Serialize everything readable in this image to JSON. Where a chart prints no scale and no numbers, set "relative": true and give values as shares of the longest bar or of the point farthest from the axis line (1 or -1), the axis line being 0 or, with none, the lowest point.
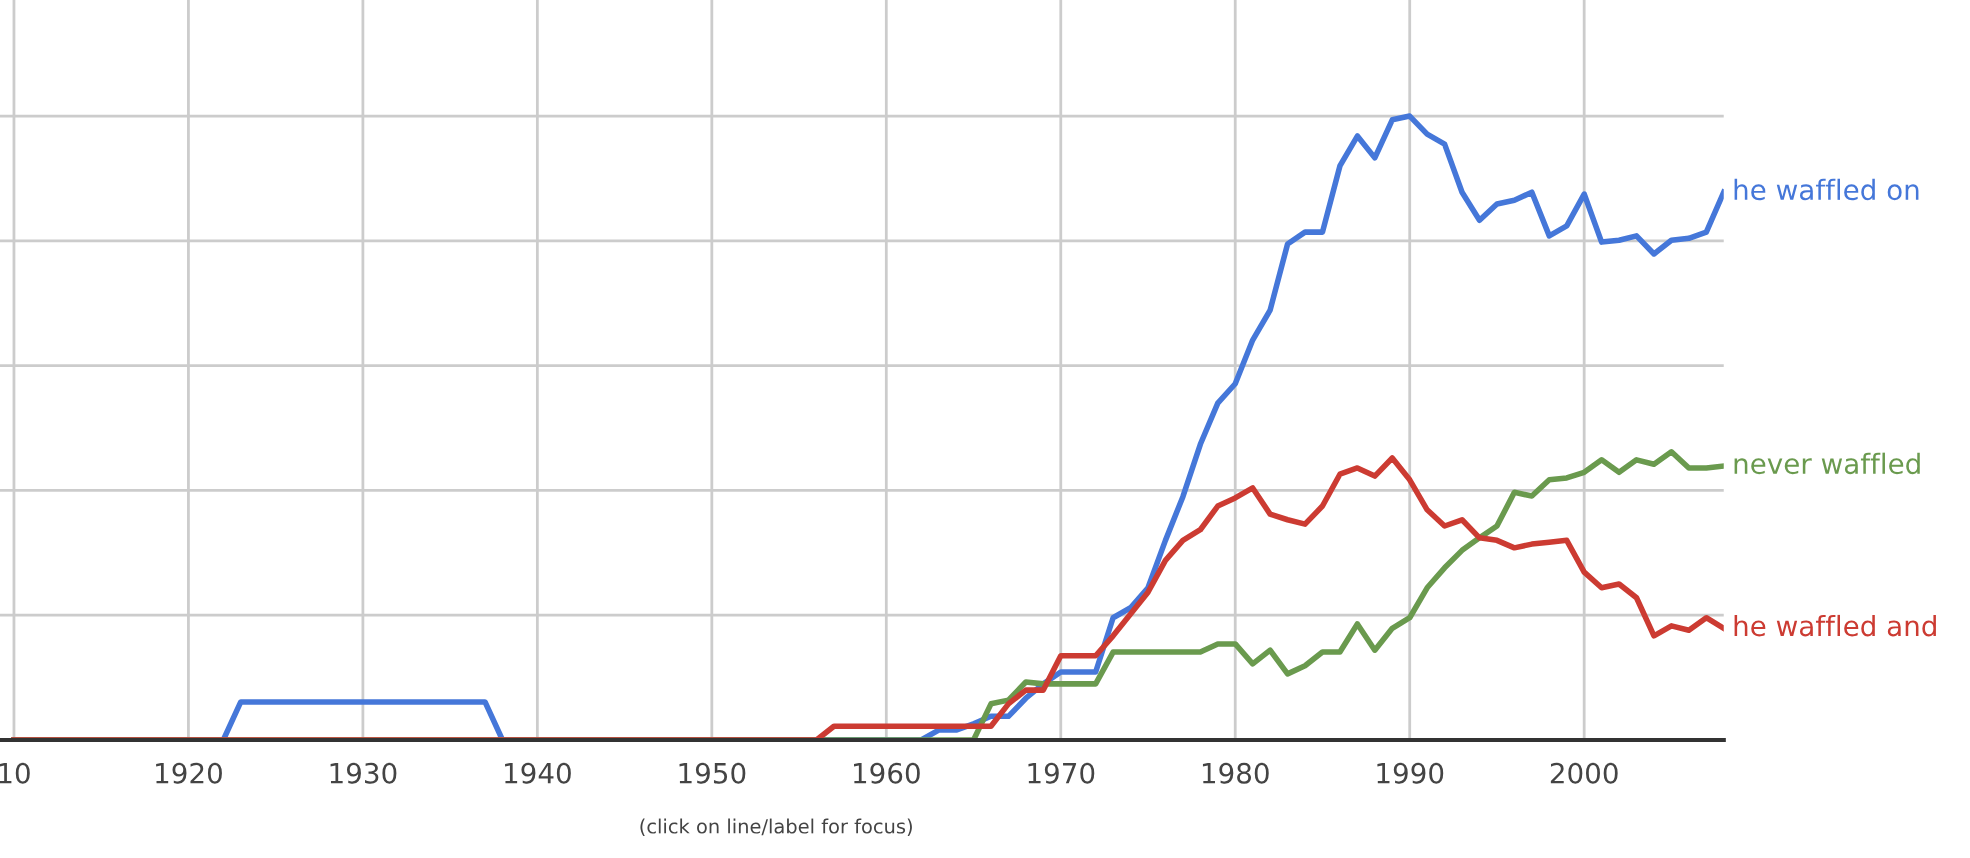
{
  "chart_data": {
    "type": "line",
    "relative": true,
    "xlim": [
      1909.2,
      2008
    ],
    "xticks": [
      {
        "value": 1910,
        "label": "10"
      },
      1920,
      1930,
      1940,
      1950,
      1960,
      1970,
      1980,
      1990,
      2000
    ],
    "grid": true,
    "legend": false,
    "marker": "none",
    "line_style": "solid",
    "annotations": [
      "(click on line/label for focus)"
    ],
    "series": [
      {
        "name": "he waffled on",
        "color": "#4577d9",
        "x": [
          1910,
          1922,
          1923,
          1937,
          1938,
          1962,
          1963,
          1964,
          1965,
          1966,
          1967,
          1968,
          1969,
          1970,
          1971,
          1972,
          1973,
          1974,
          1975,
          1976,
          1977,
          1978,
          1979,
          1980,
          1981,
          1982,
          1983,
          1984,
          1985,
          1986,
          1987,
          1988,
          1989,
          1990,
          1991,
          1992,
          1993,
          1994,
          1995,
          1996,
          1997,
          1998,
          1999,
          2000,
          2001,
          2002,
          2003,
          2004,
          2005,
          2006,
          2007,
          2008
        ],
        "values": [
          0,
          0,
          0.061,
          0.061,
          0,
          0,
          0.016,
          0.016,
          0.026,
          0.038,
          0.038,
          0.067,
          0.09,
          0.109,
          0.109,
          0.109,
          0.196,
          0.212,
          0.244,
          0.32,
          0.39,
          0.474,
          0.54,
          0.571,
          0.641,
          0.689,
          0.795,
          0.814,
          0.814,
          0.92,
          0.968,
          0.933,
          0.994,
          1,
          0.971,
          0.955,
          0.878,
          0.833,
          0.859,
          0.865,
          0.878,
          0.808,
          0.824,
          0.875,
          0.798,
          0.801,
          0.808,
          0.779,
          0.801,
          0.804,
          0.814,
          0.878
        ]
      },
      {
        "name": "never waffled",
        "color": "#6a9a4e",
        "x": [
          1910,
          1965,
          1966,
          1967,
          1968,
          1969,
          1972,
          1973,
          1978,
          1979,
          1980,
          1981,
          1982,
          1983,
          1984,
          1985,
          1986,
          1987,
          1988,
          1989,
          1990,
          1991,
          1992,
          1993,
          1994,
          1995,
          1996,
          1997,
          1998,
          1999,
          2000,
          2001,
          2002,
          2003,
          2004,
          2005,
          2006,
          2007,
          2008
        ],
        "values": [
          0,
          0,
          0.058,
          0.064,
          0.093,
          0.09,
          0.09,
          0.141,
          0.141,
          0.154,
          0.154,
          0.122,
          0.144,
          0.106,
          0.119,
          0.141,
          0.141,
          0.186,
          0.144,
          0.179,
          0.196,
          0.244,
          0.276,
          0.304,
          0.324,
          0.343,
          0.397,
          0.391,
          0.417,
          0.42,
          0.429,
          0.449,
          0.429,
          0.449,
          0.442,
          0.462,
          0.436,
          0.436,
          0.439
        ]
      },
      {
        "name": "he waffled and",
        "color": "#cc3b32",
        "x": [
          1910,
          1956,
          1957,
          1966,
          1967,
          1968,
          1969,
          1970,
          1972,
          1973,
          1974,
          1975,
          1976,
          1977,
          1978,
          1979,
          1980,
          1981,
          1982,
          1983,
          1984,
          1985,
          1986,
          1987,
          1988,
          1989,
          1990,
          1991,
          1992,
          1993,
          1994,
          1995,
          1996,
          1997,
          1998,
          1999,
          2000,
          2001,
          2002,
          2003,
          2004,
          2005,
          2006,
          2007,
          2008
        ],
        "values": [
          0,
          0,
          0.022,
          0.022,
          0.058,
          0.08,
          0.08,
          0.135,
          0.135,
          0.167,
          0.202,
          0.237,
          0.288,
          0.32,
          0.337,
          0.375,
          0.388,
          0.404,
          0.362,
          0.353,
          0.346,
          0.375,
          0.426,
          0.436,
          0.423,
          0.452,
          0.417,
          0.369,
          0.343,
          0.353,
          0.324,
          0.32,
          0.308,
          0.314,
          0.317,
          0.32,
          0.269,
          0.244,
          0.25,
          0.228,
          0.167,
          0.183,
          0.176,
          0.196,
          0.179
        ]
      }
    ]
  }
}
